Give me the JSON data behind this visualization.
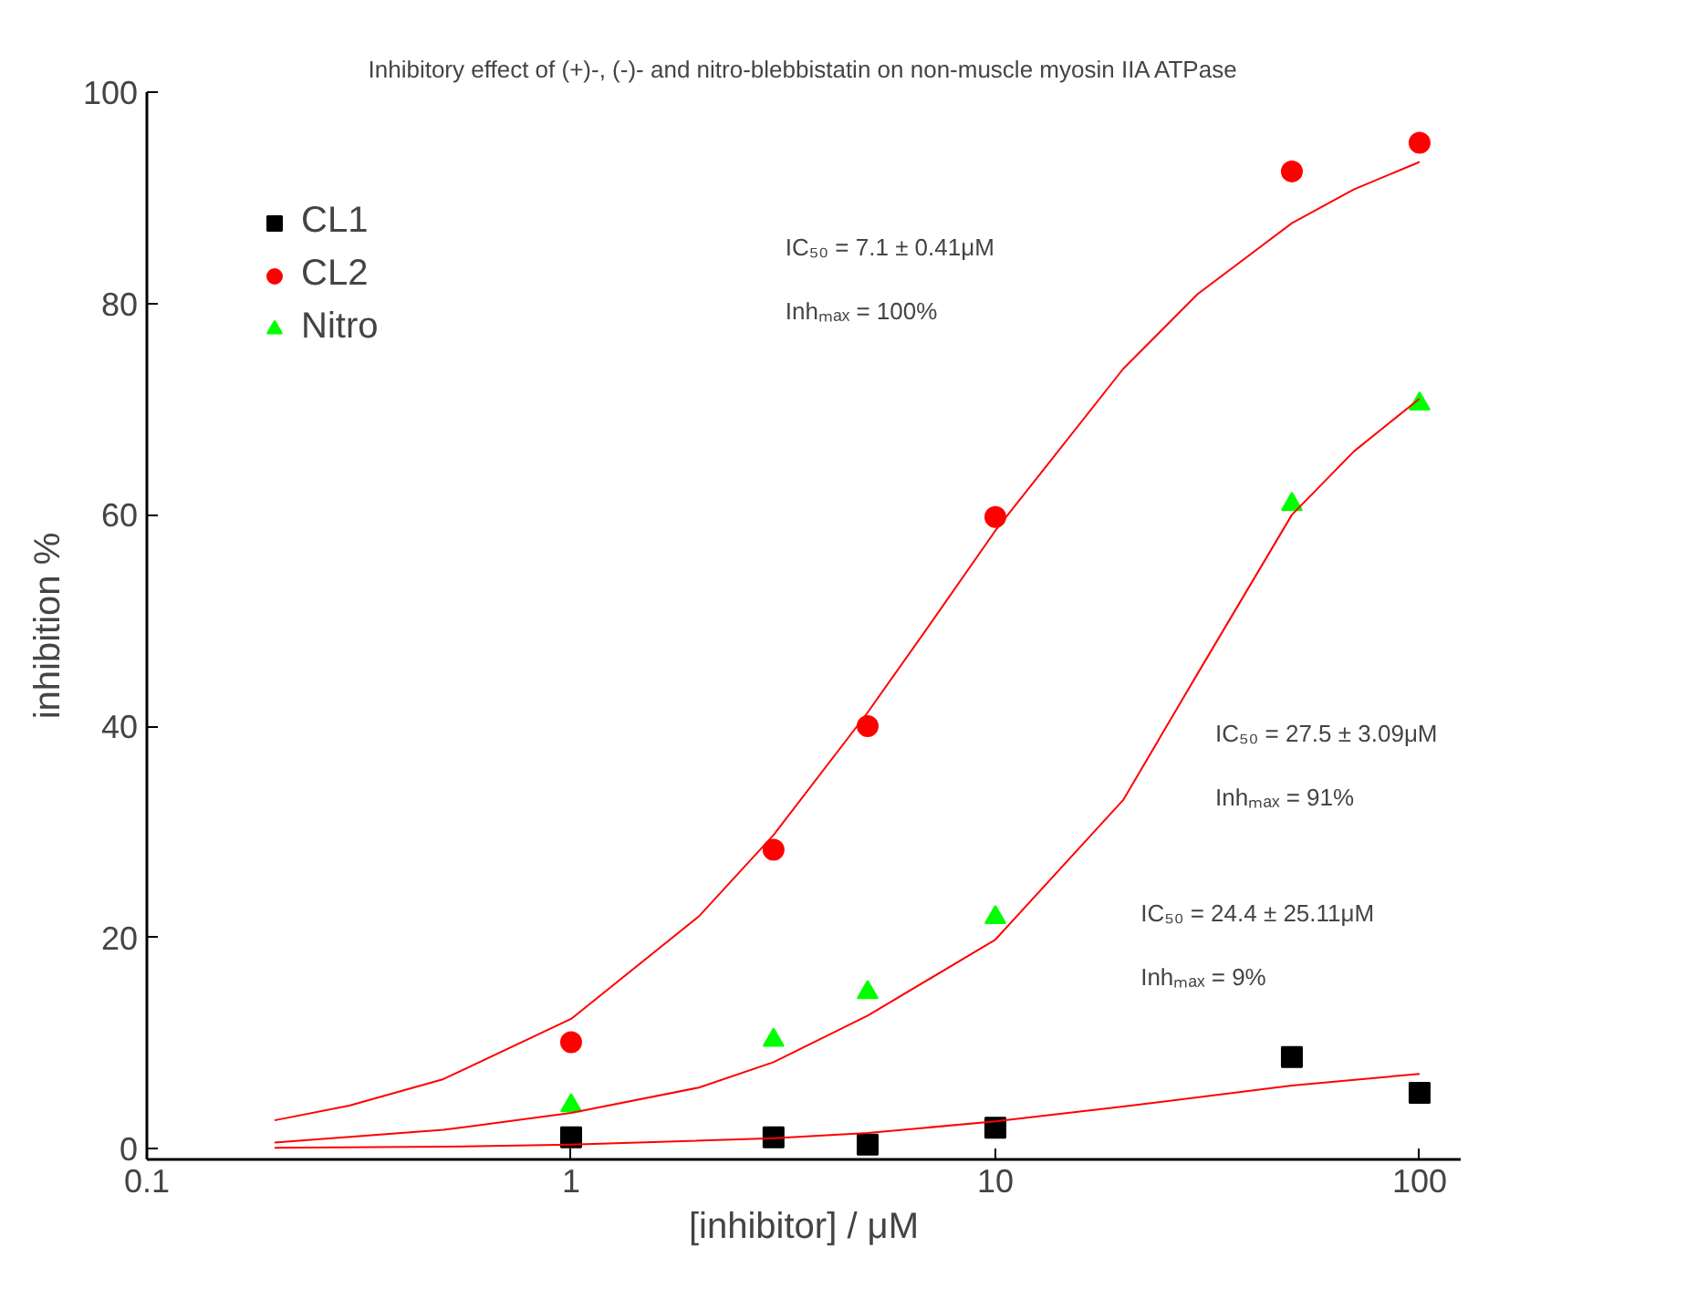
{
  "chart_data": {
    "type": "scatter",
    "title": "Inhibitory effect of (+)-, (-)- and nitro-blebbistatin on non-muscle myosin IIA ATPase",
    "xlabel": "[inhibitor] / μM",
    "ylabel": "inhibition %",
    "x": [
      1,
      3,
      5,
      10,
      50,
      100
    ],
    "series": [
      {
        "name": "CL1",
        "color": "#000000",
        "marker": "square",
        "values": [
          1.1,
          1.1,
          0.4,
          2.0,
          8.7,
          5.3
        ]
      },
      {
        "name": "CL2",
        "color": "#ff0000",
        "marker": "circle",
        "values": [
          10.1,
          28.3,
          40.0,
          59.8,
          92.5,
          95.2
        ]
      },
      {
        "name": "Nitro",
        "color": "#00ff00",
        "marker": "triangle",
        "values": [
          4.1,
          10.3,
          14.8,
          21.9,
          61.0,
          70.5
        ]
      },
      {
        "type": "line",
        "color": "#ff0000",
        "marker": "none",
        "x": [
          0.2,
          0.5,
          1,
          3,
          5,
          10,
          20,
          50,
          100
        ],
        "values": [
          0.1,
          0.2,
          0.4,
          1.0,
          1.5,
          2.6,
          4.0,
          6.0,
          7.1
        ]
      },
      {
        "type": "line",
        "color": "#ff0000",
        "marker": "none",
        "x": [
          0.2,
          0.3,
          0.5,
          1,
          2,
          3,
          5,
          7,
          10,
          20,
          30,
          50,
          70,
          100
        ],
        "values": [
          2.7,
          4.1,
          6.6,
          12.3,
          22.0,
          29.7,
          41.3,
          49.6,
          58.5,
          73.8,
          80.9,
          87.6,
          90.8,
          93.4
        ]
      },
      {
        "type": "line",
        "color": "#ff0000",
        "marker": "none",
        "x": [
          0.2,
          0.5,
          1,
          2,
          3,
          5,
          10,
          20,
          30,
          50,
          70,
          100
        ],
        "values": [
          0.6,
          1.8,
          3.4,
          5.8,
          8.2,
          12.6,
          19.8,
          33.0,
          45.0,
          60.0,
          66.0,
          71.0
        ]
      }
    ],
    "annotations": [
      "IC₅₀ = 7.1 ± 0.41μM",
      "Inhₘₐₓ = 100%",
      "IC₅₀ = 27.5 ± 3.09μM",
      "Inhₘₐₓ = 91%",
      "IC₅₀ = 24.4 ± 25.11μM",
      "Inhₘₐₓ = 9%"
    ],
    "log": "x",
    "xlim": [
      0.1,
      125
    ],
    "ylim": [
      -1,
      100
    ],
    "xticks": [
      0.1,
      1,
      10,
      100
    ],
    "yticks": [
      0,
      20,
      40,
      60,
      80,
      100
    ],
    "grid": false,
    "legend": "top left"
  }
}
